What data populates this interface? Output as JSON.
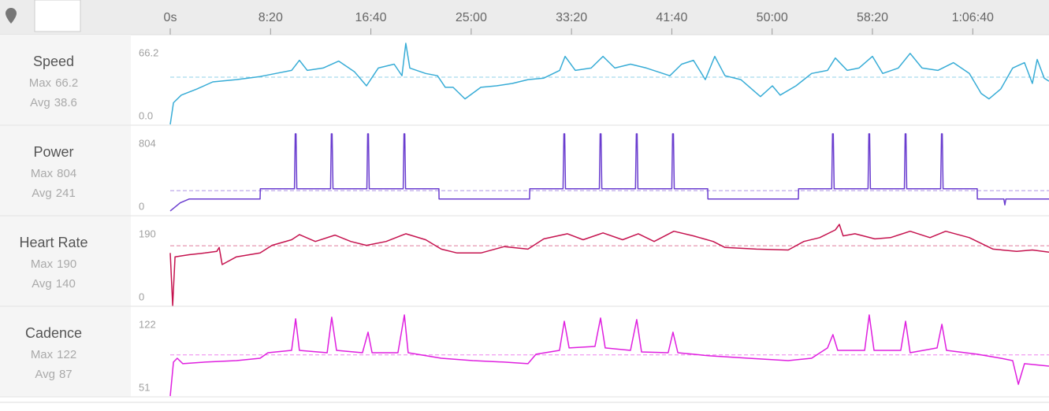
{
  "time_axis": {
    "xlim": [
      0,
      4380
    ],
    "xticks": [
      {
        "value": 0,
        "label": "0s"
      },
      {
        "value": 500,
        "label": "8:20"
      },
      {
        "value": 1000,
        "label": "16:40"
      },
      {
        "value": 1500,
        "label": "25:00"
      },
      {
        "value": 2000,
        "label": "33:20"
      },
      {
        "value": 2500,
        "label": "41:40"
      },
      {
        "value": 3000,
        "label": "50:00"
      },
      {
        "value": 3500,
        "label": "58:20"
      },
      {
        "value": 4000,
        "label": "1:06:40"
      }
    ]
  },
  "chart_data": [
    {
      "type": "line",
      "title": "Speed",
      "max_label": "Max",
      "max": 66.2,
      "avg_label": "Avg",
      "avg": 38.6,
      "color": "#37acd6",
      "ylim": [
        0,
        66.2
      ],
      "yticks": [
        {
          "value": 0,
          "label": "0.0"
        },
        66.2
      ],
      "x": [
        0,
        16,
        55,
        134,
        212,
        330,
        448,
        526,
        605,
        644,
        683,
        762,
        840,
        919,
        978,
        1037,
        1116,
        1155,
        1174,
        1194,
        1273,
        1332,
        1371,
        1410,
        1469,
        1548,
        1626,
        1705,
        1783,
        1862,
        1941,
        1968,
        2019,
        2098,
        2157,
        2216,
        2294,
        2373,
        2490,
        2549,
        2608,
        2667,
        2714,
        2765,
        2844,
        2942,
        3001,
        3040,
        3119,
        3197,
        3276,
        3315,
        3374,
        3433,
        3500,
        3551,
        3629,
        3688,
        3747,
        3826,
        3904,
        3983,
        4042,
        4081,
        4140,
        4199,
        4258,
        4297,
        4321,
        4356,
        4380
      ],
      "values": [
        0,
        17.7,
        23.9,
        29.0,
        34.7,
        36.6,
        39.1,
        41.6,
        44.1,
        52.3,
        44.1,
        46.0,
        51.7,
        42.9,
        31.5,
        46.0,
        49.2,
        39.7,
        66.2,
        46.0,
        41.6,
        39.7,
        30.3,
        30.3,
        20.8,
        30.3,
        31.5,
        33.4,
        36.6,
        37.8,
        44.1,
        55.5,
        44.1,
        46.0,
        55.5,
        46.0,
        49.2,
        46.0,
        39.7,
        49.2,
        52.3,
        36.6,
        55.5,
        39.7,
        36.6,
        22.7,
        31.5,
        23.9,
        31.5,
        41.6,
        44.1,
        54.2,
        44.1,
        46.0,
        55.5,
        41.6,
        46.0,
        58.0,
        46.0,
        44.1,
        50.4,
        41.6,
        25.2,
        20.8,
        29.0,
        46.0,
        50.4,
        33.4,
        53.0,
        37.8,
        35.3
      ]
    },
    {
      "type": "line",
      "title": "Power",
      "max_label": "Max",
      "max": 804,
      "avg_label": "Avg",
      "avg": 241,
      "color": "#6a3dcf",
      "ylim": [
        0,
        804
      ],
      "yticks": [
        0,
        804
      ],
      "x": [
        0,
        50,
        94,
        448,
        449,
        619,
        623,
        627,
        631,
        799,
        803,
        807,
        811,
        980,
        984,
        988,
        992,
        1161,
        1165,
        1169,
        1173,
        1339,
        1340,
        1791,
        1792,
        1958,
        1962,
        1966,
        1970,
        2139,
        2143,
        2147,
        2151,
        2319,
        2323,
        2327,
        2331,
        2500,
        2504,
        2508,
        2512,
        2679,
        2680,
        3131,
        3132,
        3297,
        3301,
        3305,
        3309,
        3478,
        3482,
        3486,
        3490,
        3659,
        3663,
        3667,
        3671,
        3840,
        3844,
        3848,
        3852,
        4022,
        4023,
        4155,
        4160,
        4165,
        4380
      ],
      "values": [
        40,
        120,
        158,
        158,
        260,
        260,
        804,
        804,
        260,
        260,
        804,
        804,
        260,
        260,
        804,
        804,
        260,
        260,
        804,
        804,
        260,
        260,
        158,
        158,
        260,
        260,
        804,
        804,
        260,
        260,
        804,
        804,
        260,
        260,
        804,
        804,
        260,
        260,
        804,
        804,
        260,
        260,
        158,
        158,
        260,
        260,
        804,
        804,
        260,
        260,
        804,
        804,
        260,
        260,
        804,
        804,
        260,
        260,
        804,
        804,
        260,
        260,
        158,
        158,
        100,
        158,
        158
      ]
    },
    {
      "type": "line",
      "title": "Heart Rate",
      "max_label": "Max",
      "max": 190,
      "avg_label": "Avg",
      "avg": 140,
      "color": "#c5124e",
      "ylim": [
        0,
        190
      ],
      "yticks": [
        0,
        190
      ],
      "x": [
        0,
        12,
        24,
        94,
        173,
        232,
        244,
        259,
        330,
        448,
        507,
        605,
        644,
        723,
        821,
        900,
        978,
        1076,
        1174,
        1273,
        1351,
        1430,
        1548,
        1665,
        1783,
        1862,
        1980,
        2058,
        2157,
        2255,
        2333,
        2412,
        2510,
        2608,
        2706,
        2765,
        2922,
        3080,
        3158,
        3237,
        3315,
        3335,
        3354,
        3413,
        3512,
        3590,
        3688,
        3787,
        3865,
        3983,
        4101,
        4219,
        4297,
        4380
      ],
      "values": [
        123,
        0,
        114,
        119,
        123,
        127,
        136,
        96,
        114,
        123,
        141,
        154,
        166,
        150,
        165,
        150,
        141,
        150,
        168,
        154,
        132,
        123,
        123,
        138,
        132,
        156,
        168,
        154,
        170,
        154,
        168,
        150,
        174,
        163,
        150,
        136,
        132,
        130,
        150,
        159,
        177,
        190,
        163,
        168,
        156,
        159,
        174,
        159,
        174,
        159,
        132,
        127,
        130,
        125
      ]
    },
    {
      "type": "line",
      "title": "Cadence",
      "max_label": "Max",
      "max": 122,
      "avg_label": "Avg",
      "avg": 87,
      "color": "#df1fdf",
      "ylim": [
        51,
        122
      ],
      "yticks": [
        51,
        122
      ],
      "x": [
        0,
        16,
        35,
        63,
        173,
        330,
        448,
        487,
        605,
        625,
        644,
        782,
        805,
        829,
        958,
        986,
        1006,
        1135,
        1167,
        1186,
        1351,
        1508,
        1665,
        1783,
        1823,
        1940,
        1964,
        1988,
        2117,
        2145,
        2168,
        2294,
        2325,
        2349,
        2482,
        2506,
        2530,
        2687,
        2883,
        3080,
        3197,
        3276,
        3303,
        3327,
        3461,
        3484,
        3508,
        3641,
        3665,
        3688,
        3822,
        3846,
        3869,
        4022,
        4140,
        4199,
        4227,
        4258,
        4380
      ],
      "values": [
        51,
        80.7,
        84.1,
        79.3,
        80.7,
        82.0,
        84.1,
        88.9,
        91.0,
        118.6,
        91.0,
        88.9,
        120.0,
        91.0,
        88.9,
        106.9,
        88.9,
        88.9,
        122,
        88.9,
        84.1,
        82.0,
        80.7,
        79.3,
        87.6,
        91.0,
        116.5,
        93.1,
        94.4,
        119.3,
        93.1,
        91.0,
        117.9,
        89.6,
        88.9,
        106.9,
        88.9,
        86.2,
        84.1,
        82.0,
        84.1,
        93.1,
        104.8,
        91.0,
        91.0,
        122,
        91.0,
        91.0,
        116.5,
        88.9,
        93.1,
        113.8,
        91.0,
        87.6,
        84.1,
        82.0,
        61.3,
        79.3,
        77.2
      ]
    }
  ]
}
